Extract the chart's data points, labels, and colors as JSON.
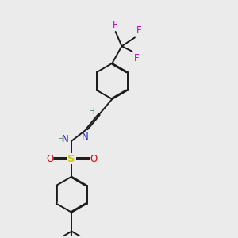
{
  "bg_color": "#ebebeb",
  "bond_color": "#1a1a1a",
  "bond_width": 1.4,
  "colors": {
    "N": "#2020cc",
    "O": "#dd0000",
    "S": "#cccc00",
    "F": "#cc00cc",
    "H_label": "#4d8080",
    "C": "#1a1a1a"
  },
  "font_size": 8.5,
  "small_font": 7.5,
  "title_font": 7
}
